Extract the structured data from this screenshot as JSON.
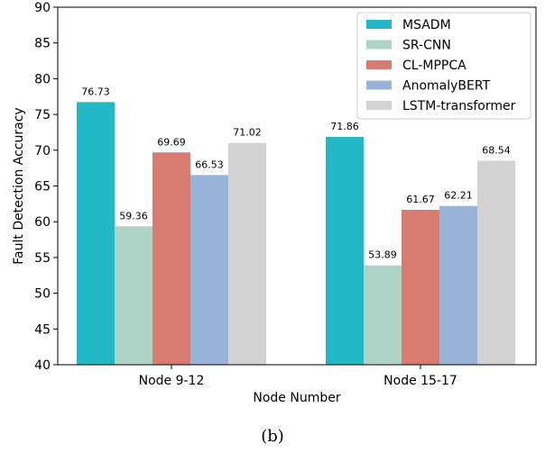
{
  "chart_data": {
    "type": "bar",
    "xlabel": "Node Number",
    "ylabel": "Fault Detection Accuracy",
    "ylim": [
      40,
      90
    ],
    "yticks": [
      40,
      45,
      50,
      55,
      60,
      65,
      70,
      75,
      80,
      85,
      90
    ],
    "categories": [
      "Node 9-12",
      "Node 15-17"
    ],
    "series": [
      {
        "name": "MSADM",
        "color": "#22b8c6",
        "values": [
          76.73,
          71.86
        ],
        "labels": [
          "76.73",
          "71.86"
        ]
      },
      {
        "name": "SR-CNN",
        "color": "#acd3c6",
        "values": [
          59.36,
          53.89
        ],
        "labels": [
          "59.36",
          "53.89"
        ]
      },
      {
        "name": "CL-MPPCA",
        "color": "#d87c72",
        "values": [
          69.69,
          61.67
        ],
        "labels": [
          "69.69",
          "61.67"
        ]
      },
      {
        "name": "AnomalyBERT",
        "color": "#97b4d8",
        "values": [
          66.53,
          62.21
        ],
        "labels": [
          "66.53",
          "62.21"
        ]
      },
      {
        "name": "LSTM-transformer",
        "color": "#d3d3d3",
        "values": [
          71.02,
          68.54
        ],
        "labels": [
          "71.02",
          "68.54"
        ]
      }
    ],
    "legend_position": "top-right",
    "grid": false
  },
  "caption": "(b)"
}
